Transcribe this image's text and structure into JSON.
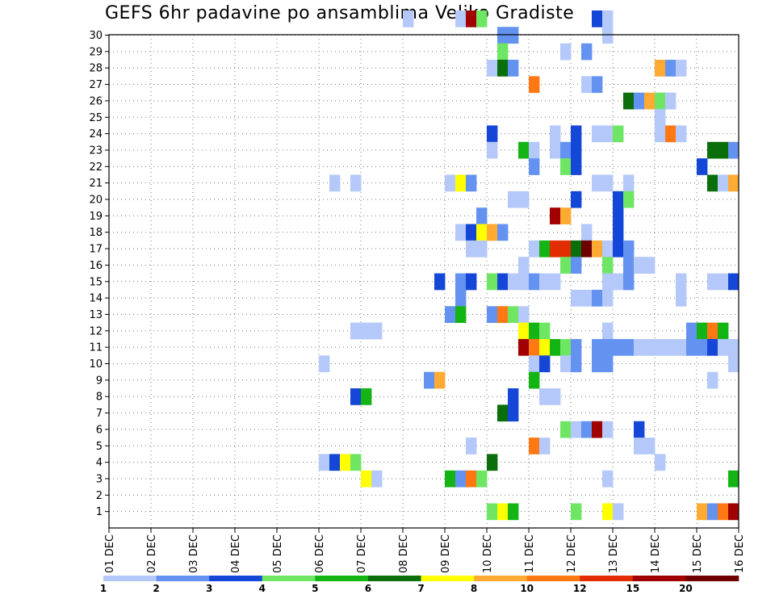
{
  "chart_data": {
    "type": "heatmap",
    "title": "GEFS 6hr padavine po ansamblima Veliko Gradiste",
    "x_categories": [
      "01 DEC",
      "02 DEC",
      "03 DEC",
      "04 DEC",
      "05 DEC",
      "06 DEC",
      "07 DEC",
      "08 DEC",
      "09 DEC",
      "10 DEC",
      "11 DEC",
      "12 DEC",
      "13 DEC",
      "14 DEC",
      "15 DEC",
      "16 DEC"
    ],
    "y_categories": [
      "1",
      "2",
      "3",
      "4",
      "5",
      "6",
      "7",
      "8",
      "9",
      "10",
      "11",
      "12",
      "13",
      "14",
      "15",
      "16",
      "17",
      "18",
      "19",
      "20",
      "21",
      "22",
      "23",
      "24",
      "25",
      "26",
      "27",
      "28",
      "29",
      "30"
    ],
    "legend_labels": [
      "1",
      "2",
      "3",
      "4",
      "5",
      "6",
      "7",
      "8",
      "10",
      "12",
      "15",
      "20"
    ],
    "legend_colors": [
      "#b4c8fa",
      "#6492f0",
      "#1446d7",
      "#6ee664",
      "#14b414",
      "#0a6e0a",
      "#ffff00",
      "#ffaa32",
      "#ff7814",
      "#e12d00",
      "#a00000",
      "#6e0000"
    ],
    "grid": "dotted",
    "notes": "cells: [ensemble_member (0 = bottom row), time_step_6h (0 = 01 DEC 00z), color_index 0-11]",
    "cells": [
      [
        30,
        28,
        0
      ],
      [
        30,
        33,
        0
      ],
      [
        30,
        34,
        10
      ],
      [
        30,
        35,
        3
      ],
      [
        30,
        46,
        2
      ],
      [
        30,
        47,
        0
      ],
      [
        29,
        37,
        1
      ],
      [
        29,
        38,
        1
      ],
      [
        29,
        47,
        0
      ],
      [
        28,
        37,
        3
      ],
      [
        28,
        43,
        0
      ],
      [
        28,
        45,
        1
      ],
      [
        27,
        36,
        0
      ],
      [
        27,
        37,
        5
      ],
      [
        27,
        38,
        1
      ],
      [
        27,
        52,
        7
      ],
      [
        27,
        53,
        1
      ],
      [
        27,
        54,
        0
      ],
      [
        26,
        40,
        8
      ],
      [
        26,
        45,
        0
      ],
      [
        26,
        46,
        1
      ],
      [
        25,
        49,
        5
      ],
      [
        25,
        50,
        1
      ],
      [
        25,
        51,
        7
      ],
      [
        25,
        52,
        3
      ],
      [
        25,
        53,
        0
      ],
      [
        24,
        52,
        0
      ],
      [
        23,
        36,
        2
      ],
      [
        23,
        42,
        0
      ],
      [
        23,
        44,
        2
      ],
      [
        23,
        46,
        0
      ],
      [
        23,
        47,
        0
      ],
      [
        23,
        48,
        3
      ],
      [
        23,
        52,
        0
      ],
      [
        23,
        53,
        8
      ],
      [
        23,
        54,
        0
      ],
      [
        22,
        36,
        0
      ],
      [
        22,
        39,
        4
      ],
      [
        22,
        40,
        0
      ],
      [
        22,
        42,
        0
      ],
      [
        22,
        43,
        1
      ],
      [
        22,
        44,
        2
      ],
      [
        22,
        57,
        5
      ],
      [
        22,
        58,
        5
      ],
      [
        22,
        59,
        1
      ],
      [
        21,
        40,
        1
      ],
      [
        21,
        43,
        3
      ],
      [
        21,
        44,
        2
      ],
      [
        21,
        56,
        2
      ],
      [
        20,
        21,
        0
      ],
      [
        20,
        23,
        0
      ],
      [
        20,
        32,
        0
      ],
      [
        20,
        33,
        6
      ],
      [
        20,
        34,
        1
      ],
      [
        20,
        46,
        0
      ],
      [
        20,
        47,
        0
      ],
      [
        20,
        49,
        0
      ],
      [
        20,
        57,
        5
      ],
      [
        20,
        58,
        0
      ],
      [
        20,
        59,
        7
      ],
      [
        19,
        38,
        0
      ],
      [
        19,
        39,
        0
      ],
      [
        19,
        44,
        2
      ],
      [
        19,
        48,
        2
      ],
      [
        19,
        49,
        3
      ],
      [
        18,
        35,
        1
      ],
      [
        18,
        42,
        10
      ],
      [
        18,
        43,
        7
      ],
      [
        18,
        48,
        2
      ],
      [
        17,
        33,
        0
      ],
      [
        17,
        34,
        2
      ],
      [
        17,
        35,
        6
      ],
      [
        17,
        36,
        7
      ],
      [
        17,
        37,
        1
      ],
      [
        17,
        45,
        0
      ],
      [
        17,
        48,
        2
      ],
      [
        16,
        34,
        0
      ],
      [
        16,
        35,
        0
      ],
      [
        16,
        40,
        0
      ],
      [
        16,
        41,
        4
      ],
      [
        16,
        42,
        9
      ],
      [
        16,
        43,
        9
      ],
      [
        16,
        44,
        5
      ],
      [
        16,
        45,
        11
      ],
      [
        16,
        46,
        7
      ],
      [
        16,
        47,
        0
      ],
      [
        16,
        48,
        2
      ],
      [
        16,
        49,
        1
      ],
      [
        15,
        39,
        0
      ],
      [
        15,
        43,
        3
      ],
      [
        15,
        44,
        1
      ],
      [
        15,
        47,
        3
      ],
      [
        15,
        49,
        1
      ],
      [
        15,
        50,
        0
      ],
      [
        15,
        51,
        0
      ],
      [
        14,
        31,
        2
      ],
      [
        14,
        33,
        1
      ],
      [
        14,
        34,
        2
      ],
      [
        14,
        36,
        3
      ],
      [
        14,
        37,
        2
      ],
      [
        14,
        38,
        0
      ],
      [
        14,
        39,
        0
      ],
      [
        14,
        40,
        1
      ],
      [
        14,
        41,
        0
      ],
      [
        14,
        42,
        0
      ],
      [
        14,
        47,
        0
      ],
      [
        14,
        48,
        0
      ],
      [
        14,
        49,
        1
      ],
      [
        14,
        54,
        0
      ],
      [
        14,
        57,
        0
      ],
      [
        14,
        58,
        0
      ],
      [
        14,
        59,
        2
      ],
      [
        13,
        33,
        1
      ],
      [
        13,
        44,
        0
      ],
      [
        13,
        45,
        0
      ],
      [
        13,
        46,
        1
      ],
      [
        13,
        47,
        0
      ],
      [
        13,
        54,
        0
      ],
      [
        12,
        32,
        1
      ],
      [
        12,
        33,
        4
      ],
      [
        12,
        36,
        1
      ],
      [
        12,
        37,
        8
      ],
      [
        12,
        38,
        3
      ],
      [
        12,
        39,
        0
      ],
      [
        11,
        23,
        0
      ],
      [
        11,
        24,
        0
      ],
      [
        11,
        25,
        0
      ],
      [
        11,
        39,
        6
      ],
      [
        11,
        40,
        4
      ],
      [
        11,
        41,
        3
      ],
      [
        11,
        47,
        0
      ],
      [
        11,
        55,
        1
      ],
      [
        11,
        56,
        4
      ],
      [
        11,
        57,
        8
      ],
      [
        11,
        58,
        4
      ],
      [
        10,
        39,
        10
      ],
      [
        10,
        40,
        8
      ],
      [
        10,
        41,
        6
      ],
      [
        10,
        42,
        4
      ],
      [
        10,
        43,
        3
      ],
      [
        10,
        44,
        1
      ],
      [
        10,
        46,
        1
      ],
      [
        10,
        47,
        1
      ],
      [
        10,
        48,
        1
      ],
      [
        10,
        49,
        1
      ],
      [
        10,
        50,
        0
      ],
      [
        10,
        51,
        0
      ],
      [
        10,
        52,
        0
      ],
      [
        10,
        53,
        0
      ],
      [
        10,
        54,
        0
      ],
      [
        10,
        55,
        1
      ],
      [
        10,
        56,
        1
      ],
      [
        10,
        57,
        2
      ],
      [
        10,
        58,
        0
      ],
      [
        10,
        59,
        0
      ],
      [
        9,
        20,
        0
      ],
      [
        9,
        40,
        0
      ],
      [
        9,
        41,
        2
      ],
      [
        9,
        43,
        0
      ],
      [
        9,
        44,
        1
      ],
      [
        9,
        46,
        1
      ],
      [
        9,
        47,
        1
      ],
      [
        9,
        59,
        0
      ],
      [
        8,
        30,
        1
      ],
      [
        8,
        31,
        7
      ],
      [
        8,
        40,
        4
      ],
      [
        8,
        57,
        0
      ],
      [
        7,
        23,
        2
      ],
      [
        7,
        24,
        4
      ],
      [
        7,
        38,
        2
      ],
      [
        7,
        41,
        0
      ],
      [
        7,
        42,
        0
      ],
      [
        6,
        37,
        5
      ],
      [
        6,
        38,
        2
      ],
      [
        5,
        43,
        3
      ],
      [
        5,
        44,
        0
      ],
      [
        5,
        45,
        1
      ],
      [
        5,
        46,
        10
      ],
      [
        5,
        47,
        0
      ],
      [
        5,
        50,
        2
      ],
      [
        4,
        34,
        0
      ],
      [
        4,
        40,
        8
      ],
      [
        4,
        41,
        0
      ],
      [
        4,
        50,
        0
      ],
      [
        4,
        51,
        0
      ],
      [
        3,
        20,
        0
      ],
      [
        3,
        21,
        2
      ],
      [
        3,
        22,
        6
      ],
      [
        3,
        23,
        3
      ],
      [
        3,
        36,
        5
      ],
      [
        3,
        52,
        0
      ],
      [
        2,
        24,
        6
      ],
      [
        2,
        25,
        0
      ],
      [
        2,
        32,
        4
      ],
      [
        2,
        33,
        1
      ],
      [
        2,
        34,
        8
      ],
      [
        2,
        35,
        3
      ],
      [
        2,
        47,
        0
      ],
      [
        2,
        59,
        4
      ],
      [
        0,
        36,
        3
      ],
      [
        0,
        37,
        6
      ],
      [
        0,
        38,
        4
      ],
      [
        0,
        44,
        3
      ],
      [
        0,
        47,
        6
      ],
      [
        0,
        48,
        0
      ],
      [
        0,
        56,
        7
      ],
      [
        0,
        57,
        1
      ],
      [
        0,
        58,
        8
      ],
      [
        0,
        59,
        10
      ]
    ]
  }
}
